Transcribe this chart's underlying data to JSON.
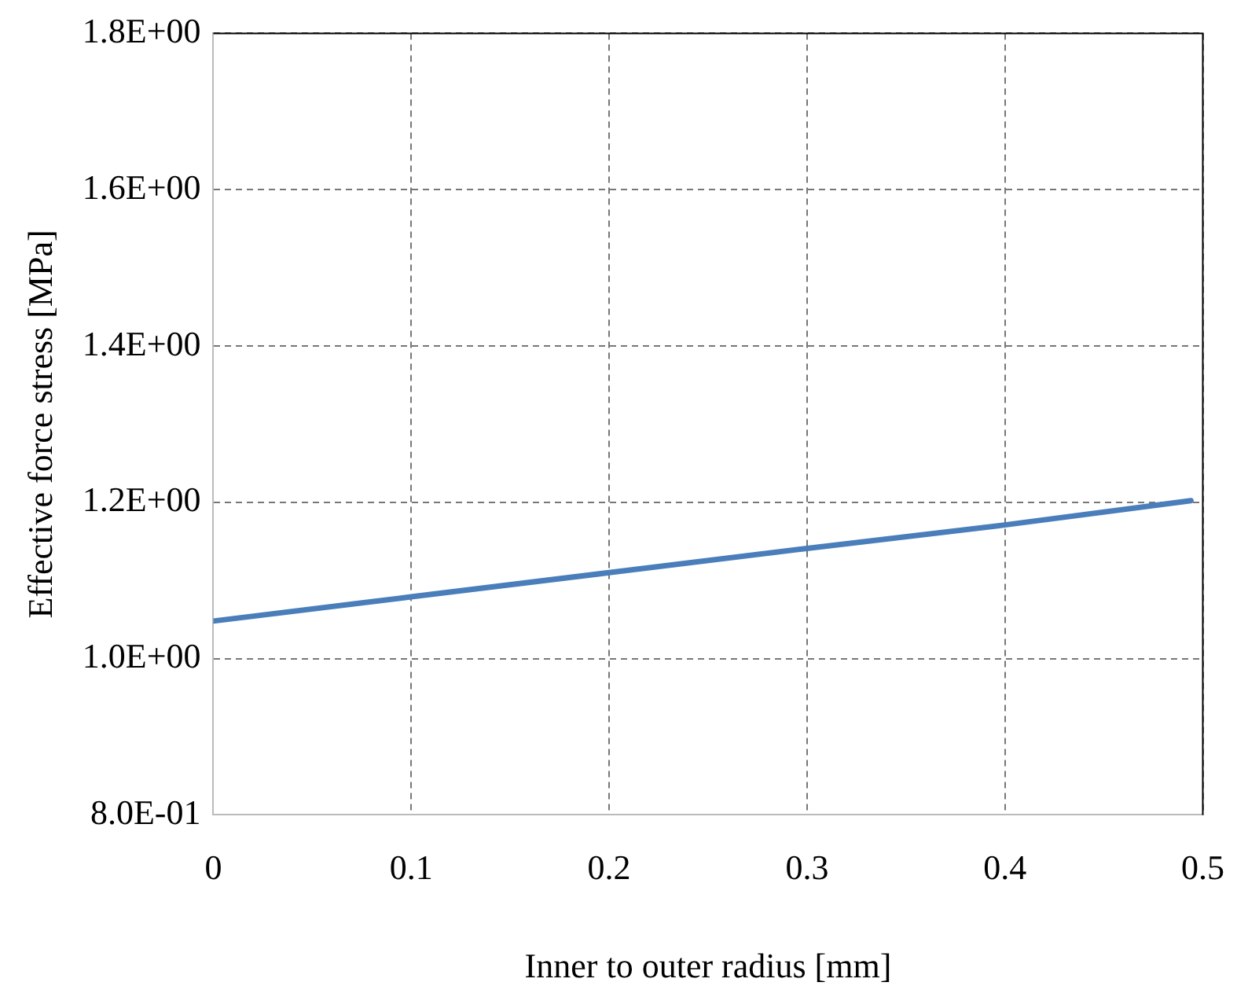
{
  "chart_data": {
    "type": "line",
    "xlabel": "Inner to outer radius [mm]",
    "ylabel": "Effective force stress [MPa]",
    "x": [
      0,
      0.1,
      0.2,
      0.3,
      0.4,
      0.494
    ],
    "series": [
      {
        "color": "#4a7ebb",
        "values": [
          1.048,
          1.079,
          1.11,
          1.141,
          1.171,
          1.202
        ]
      }
    ],
    "xlim": [
      0,
      0.5
    ],
    "xticks": [
      0,
      0.1,
      0.2,
      0.3,
      0.4,
      0.5
    ],
    "ylim": [
      0.8,
      1.8
    ],
    "yticks": [
      {
        "value": 0.8,
        "label": "8.0E-01"
      },
      {
        "value": 1.0,
        "label": "1.0E+00"
      },
      {
        "value": 1.2,
        "label": "1.2E+00"
      },
      {
        "value": 1.4,
        "label": "1.4E+00"
      },
      {
        "value": 1.6,
        "label": "1.6E+00"
      },
      {
        "value": 1.8,
        "label": "1.8E+00"
      }
    ],
    "grid": true,
    "legend": false,
    "marker": "none",
    "line_style": "solid"
  }
}
